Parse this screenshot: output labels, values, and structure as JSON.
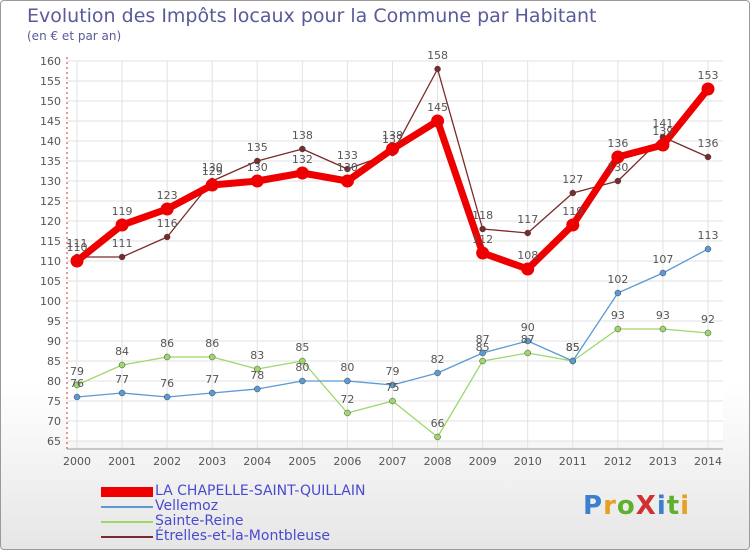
{
  "header": {
    "title": "Evolution des Impôts locaux pour la Commune par Habitant",
    "subtitle": "(en € et par an)"
  },
  "logo": {
    "text": "ProXiti",
    "colors": [
      "#3a7fd0",
      "#e8a020",
      "#60b030",
      "#d03030",
      "#3a7fd0",
      "#60b030",
      "#e8a020"
    ]
  },
  "chart_data": {
    "type": "line",
    "title": "Evolution des Impôts locaux pour la Commune par Habitant",
    "subtitle": "(en € et par an)",
    "xlabel": "",
    "ylabel": "",
    "categories": [
      "2000",
      "2001",
      "2002",
      "2003",
      "2004",
      "2005",
      "2006",
      "2007",
      "2008",
      "2009",
      "2010",
      "2011",
      "2012",
      "2013",
      "2014"
    ],
    "ylim": [
      65,
      160
    ],
    "yticks": [
      65,
      70,
      75,
      80,
      85,
      90,
      95,
      100,
      105,
      110,
      115,
      120,
      125,
      130,
      135,
      140,
      145,
      150,
      155,
      160
    ],
    "grid": true,
    "legend_position": "bottom-left",
    "series": [
      {
        "name": "LA CHAPELLE-SAINT-QUILLAIN",
        "color": "#ee0000",
        "values": [
          110,
          119,
          123,
          129,
          130,
          132,
          130,
          138,
          145,
          112,
          108,
          119,
          136,
          139,
          153
        ]
      },
      {
        "name": "Vellemoz",
        "color": "#5b9ad5",
        "values": [
          76,
          77,
          76,
          77,
          78,
          80,
          80,
          79,
          82,
          87,
          90,
          85,
          102,
          107,
          113
        ]
      },
      {
        "name": "Sainte-Reine",
        "color": "#9dd86a",
        "values": [
          79,
          84,
          86,
          86,
          83,
          85,
          72,
          75,
          66,
          85,
          87,
          85,
          93,
          93,
          92
        ]
      },
      {
        "name": "Étrelles-et-la-Montbleuse",
        "color": "#7a2a2a",
        "values": [
          111,
          111,
          116,
          130,
          135,
          138,
          133,
          137,
          158,
          118,
          117,
          127,
          130,
          141,
          136
        ]
      }
    ]
  }
}
